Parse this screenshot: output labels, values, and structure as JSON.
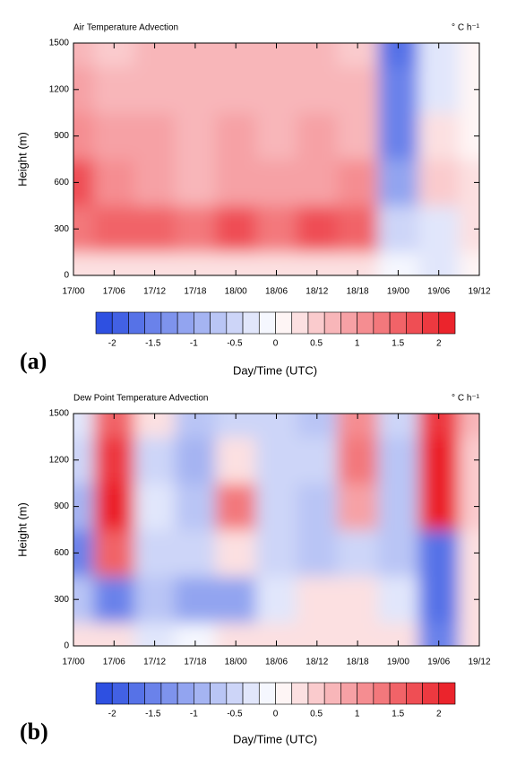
{
  "chart_data": [
    {
      "type": "heatmap",
      "title": "Air Temperature Advection",
      "units": "° C h⁻¹",
      "panel_label": "(a)",
      "ylabel": "Height (m)",
      "xlabel": "Day/Time (UTC)",
      "x": [
        0,
        6,
        12,
        18,
        24,
        30,
        36,
        42,
        48,
        54,
        60
      ],
      "y": [
        0,
        300,
        600,
        900,
        1200,
        1500
      ],
      "z": [
        [
          0.3,
          0.3,
          0.3,
          0.3,
          0.3,
          0.3,
          0.3,
          0.3,
          -0.2,
          -0.3,
          0
        ],
        [
          1.2,
          1.5,
          1.5,
          1.3,
          1.7,
          1.2,
          1.6,
          1.5,
          -0.5,
          -0.3,
          0.2
        ],
        [
          1.7,
          1.0,
          0.8,
          0.7,
          0.8,
          0.8,
          0.9,
          1.0,
          -1.2,
          0.5,
          0.3
        ],
        [
          1.0,
          0.8,
          0.8,
          0.7,
          0.8,
          0.7,
          0.8,
          0.7,
          -1.5,
          0.3,
          0
        ],
        [
          0.8,
          0.6,
          0.7,
          0.6,
          0.7,
          0.6,
          0.7,
          0.6,
          -1.6,
          -0.3,
          0
        ],
        [
          0.7,
          0.5,
          0.6,
          0.6,
          0.7,
          0.6,
          0.7,
          0.5,
          -1.8,
          -0.3,
          0
        ]
      ],
      "xlim": [
        0,
        60
      ],
      "ylim": [
        0,
        1500
      ],
      "xticks": [
        {
          "value": 0,
          "label": "17/00"
        },
        {
          "value": 6,
          "label": "17/06"
        },
        {
          "value": 12,
          "label": "17/12"
        },
        {
          "value": 18,
          "label": "17/18"
        },
        {
          "value": 24,
          "label": "18/00"
        },
        {
          "value": 30,
          "label": "18/06"
        },
        {
          "value": 36,
          "label": "18/12"
        },
        {
          "value": 42,
          "label": "18/18"
        },
        {
          "value": 48,
          "label": "19/00"
        },
        {
          "value": 54,
          "label": "19/06"
        },
        {
          "value": 60,
          "label": "19/12"
        }
      ],
      "yticks": [
        0,
        300,
        600,
        900,
        1200,
        1500
      ],
      "clim": [
        -2.2,
        2.2
      ],
      "level_spacing": 0.2,
      "cticks": [
        -2,
        -1.5,
        -1,
        -0.5,
        0,
        0.5,
        1,
        1.5,
        2
      ],
      "colormap": [
        "#2448e0",
        "#ffffff",
        "#ea1a22"
      ]
    },
    {
      "type": "heatmap",
      "title": "Dew Point Temperature Advection",
      "units": "° C h⁻¹",
      "panel_label": "(b)",
      "ylabel": "Height (m)",
      "xlabel": "Day/Time (UTC)",
      "x": [
        0,
        6,
        12,
        18,
        24,
        30,
        36,
        42,
        48,
        54,
        60
      ],
      "y": [
        0,
        300,
        600,
        900,
        1200,
        1500
      ],
      "z": [
        [
          0.3,
          0.2,
          -0.3,
          -0.2,
          0.3,
          0.3,
          0.3,
          0.3,
          0.3,
          -1.5,
          0.3
        ],
        [
          -0.8,
          -1.5,
          -0.8,
          -1.2,
          -1.2,
          -0.3,
          0.3,
          0.3,
          -0.3,
          -1.8,
          0.3
        ],
        [
          -1.6,
          1.5,
          -0.5,
          -0.6,
          0.3,
          -0.5,
          -0.7,
          -0.6,
          -0.8,
          -1.8,
          0.3
        ],
        [
          -1.0,
          2.0,
          -0.3,
          -0.8,
          1.2,
          -0.6,
          -0.8,
          0.8,
          -0.8,
          2.0,
          0.5
        ],
        [
          -0.6,
          1.8,
          -0.6,
          -1.0,
          0.3,
          -0.5,
          -0.6,
          1.3,
          -0.8,
          2.0,
          0.5
        ],
        [
          -0.4,
          1.5,
          0.3,
          -0.8,
          -0.5,
          -0.6,
          -0.8,
          1.0,
          -0.5,
          1.8,
          0.6
        ]
      ],
      "xlim": [
        0,
        60
      ],
      "ylim": [
        0,
        1500
      ],
      "xticks": [
        {
          "value": 0,
          "label": "17/00"
        },
        {
          "value": 6,
          "label": "17/06"
        },
        {
          "value": 12,
          "label": "17/12"
        },
        {
          "value": 18,
          "label": "17/18"
        },
        {
          "value": 24,
          "label": "18/00"
        },
        {
          "value": 30,
          "label": "18/06"
        },
        {
          "value": 36,
          "label": "18/12"
        },
        {
          "value": 42,
          "label": "18/18"
        },
        {
          "value": 48,
          "label": "19/00"
        },
        {
          "value": 54,
          "label": "19/06"
        },
        {
          "value": 60,
          "label": "19/12"
        }
      ],
      "yticks": [
        0,
        300,
        600,
        900,
        1200,
        1500
      ],
      "clim": [
        -2.2,
        2.2
      ],
      "level_spacing": 0.2,
      "cticks": [
        -2,
        -1.5,
        -1,
        -0.5,
        0,
        0.5,
        1,
        1.5,
        2
      ],
      "colormap": [
        "#2448e0",
        "#ffffff",
        "#ea1a22"
      ]
    }
  ]
}
